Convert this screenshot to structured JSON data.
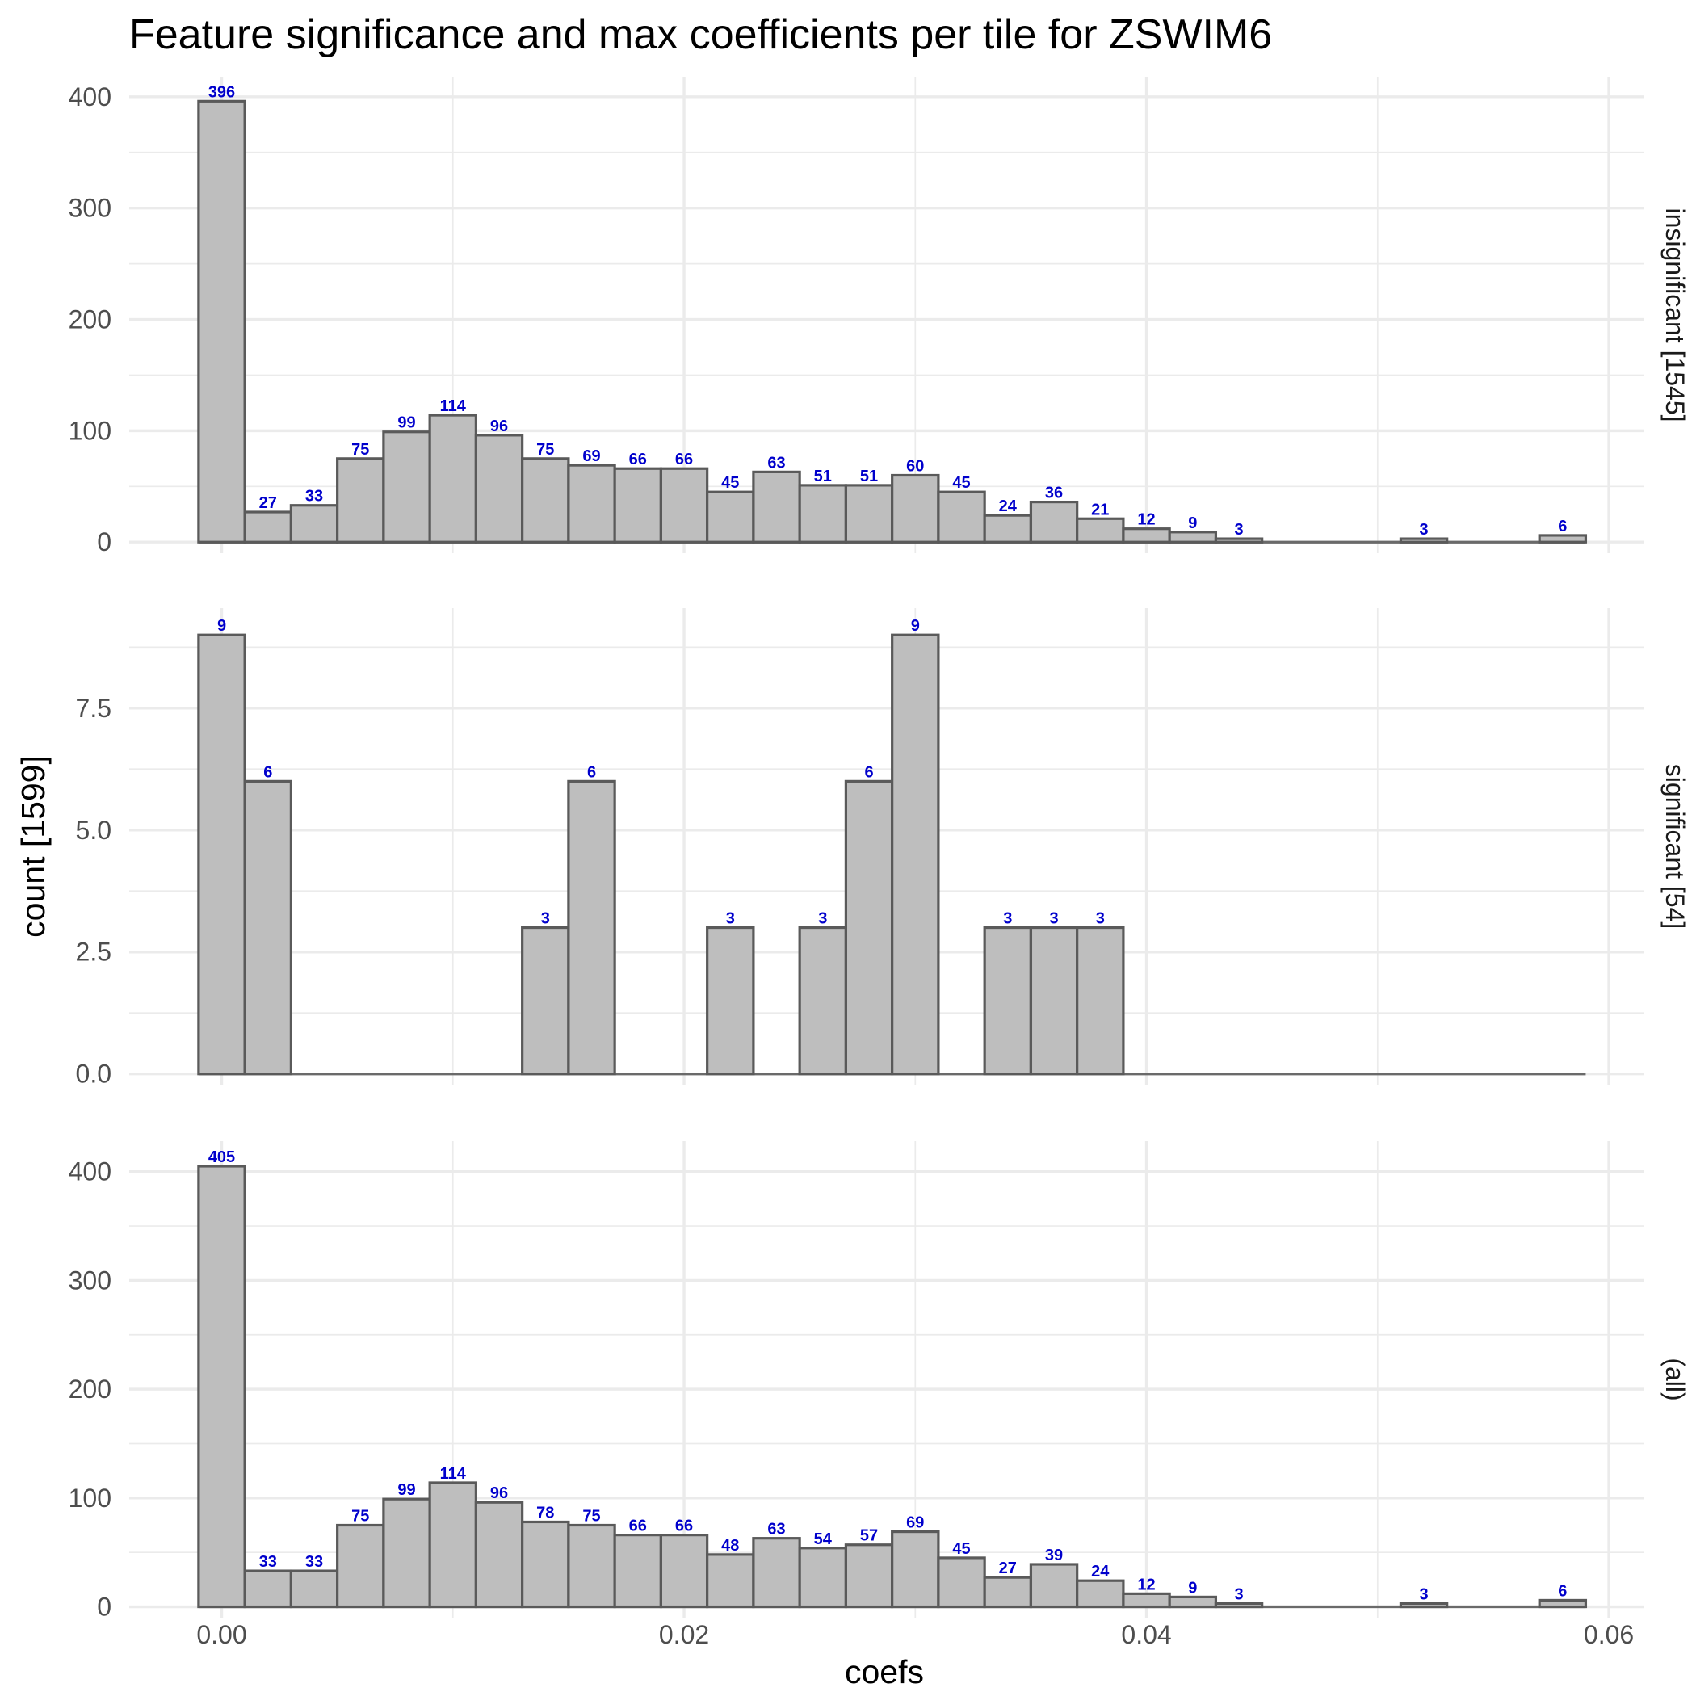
{
  "chart_data": {
    "type": "bar",
    "title": "Feature significance and max coefficients per tile for ZSWIM6",
    "xlabel": "coefs",
    "ylabel": "count [1599]",
    "bin_width": 0.002,
    "x_bin_centers": [
      0.0,
      0.002,
      0.004,
      0.006,
      0.008,
      0.01,
      0.012,
      0.014,
      0.016,
      0.018,
      0.02,
      0.022,
      0.024,
      0.026,
      0.028,
      0.03,
      0.032,
      0.034,
      0.036,
      0.038,
      0.04,
      0.042,
      0.044,
      0.046,
      0.048,
      0.05,
      0.052,
      0.054,
      0.056,
      0.058
    ],
    "xlim": [
      -0.004,
      0.0615
    ],
    "x_ticks": [
      0.0,
      0.02,
      0.04,
      0.06
    ],
    "x_tick_labels": [
      "0.00",
      "0.02",
      "0.04",
      "0.06"
    ],
    "grid": true,
    "panels": [
      {
        "strip_label": "insignificant [1545]",
        "ylim": [
          -10,
          418
        ],
        "y_ticks": [
          0,
          100,
          200,
          300,
          400
        ],
        "y_tick_labels": [
          "0",
          "100",
          "200",
          "300",
          "400"
        ],
        "values": [
          396,
          27,
          33,
          75,
          99,
          114,
          96,
          75,
          69,
          66,
          66,
          45,
          63,
          51,
          51,
          60,
          45,
          24,
          36,
          21,
          12,
          9,
          3,
          0,
          0,
          0,
          3,
          0,
          0,
          6
        ],
        "labels": [
          "396",
          "27",
          "33",
          "75",
          "99",
          "114",
          "96",
          "75",
          "69",
          "66",
          "66",
          "45",
          "63",
          "51",
          "51",
          "60",
          "45",
          "24",
          "36",
          "21",
          "12",
          "9",
          "3",
          "",
          "",
          "",
          "3",
          "",
          "",
          "6"
        ]
      },
      {
        "strip_label": "significant [54]",
        "ylim": [
          -0.22,
          9.55
        ],
        "y_ticks": [
          0.0,
          2.5,
          5.0,
          7.5
        ],
        "y_tick_labels": [
          "0.0",
          "2.5",
          "5.0",
          "7.5"
        ],
        "values": [
          9,
          6,
          0,
          0,
          0,
          0,
          0,
          3,
          6,
          0,
          0,
          3,
          0,
          3,
          6,
          9,
          0,
          3,
          3,
          3,
          0,
          0,
          0,
          0,
          0,
          0,
          0,
          0,
          0,
          0
        ],
        "labels": [
          "9",
          "6",
          "",
          "",
          "",
          "",
          "",
          "3",
          "6",
          "",
          "",
          "3",
          "",
          "3",
          "6",
          "9",
          "",
          "3",
          "3",
          "3",
          "",
          "",
          "",
          "",
          "",
          "",
          "",
          "",
          "",
          ""
        ]
      },
      {
        "strip_label": "(all)",
        "ylim": [
          -10,
          428
        ],
        "y_ticks": [
          0,
          100,
          200,
          300,
          400
        ],
        "y_tick_labels": [
          "0",
          "100",
          "200",
          "300",
          "400"
        ],
        "values": [
          405,
          33,
          33,
          75,
          99,
          114,
          96,
          78,
          75,
          66,
          66,
          48,
          63,
          54,
          57,
          69,
          45,
          27,
          39,
          24,
          12,
          9,
          3,
          0,
          0,
          0,
          3,
          0,
          0,
          6
        ],
        "labels": [
          "405",
          "33",
          "33",
          "75",
          "99",
          "114",
          "96",
          "78",
          "75",
          "66",
          "66",
          "48",
          "63",
          "54",
          "57",
          "69",
          "45",
          "27",
          "39",
          "24",
          "12",
          "9",
          "3",
          "",
          "",
          "",
          "3",
          "",
          "",
          "6"
        ]
      }
    ],
    "colors": {
      "bar_fill": "#bebebe",
      "bar_outline": "#5a5a5a",
      "bar_label": "#0000cc",
      "grid": "#ebebeb",
      "background": "#ffffff"
    }
  }
}
